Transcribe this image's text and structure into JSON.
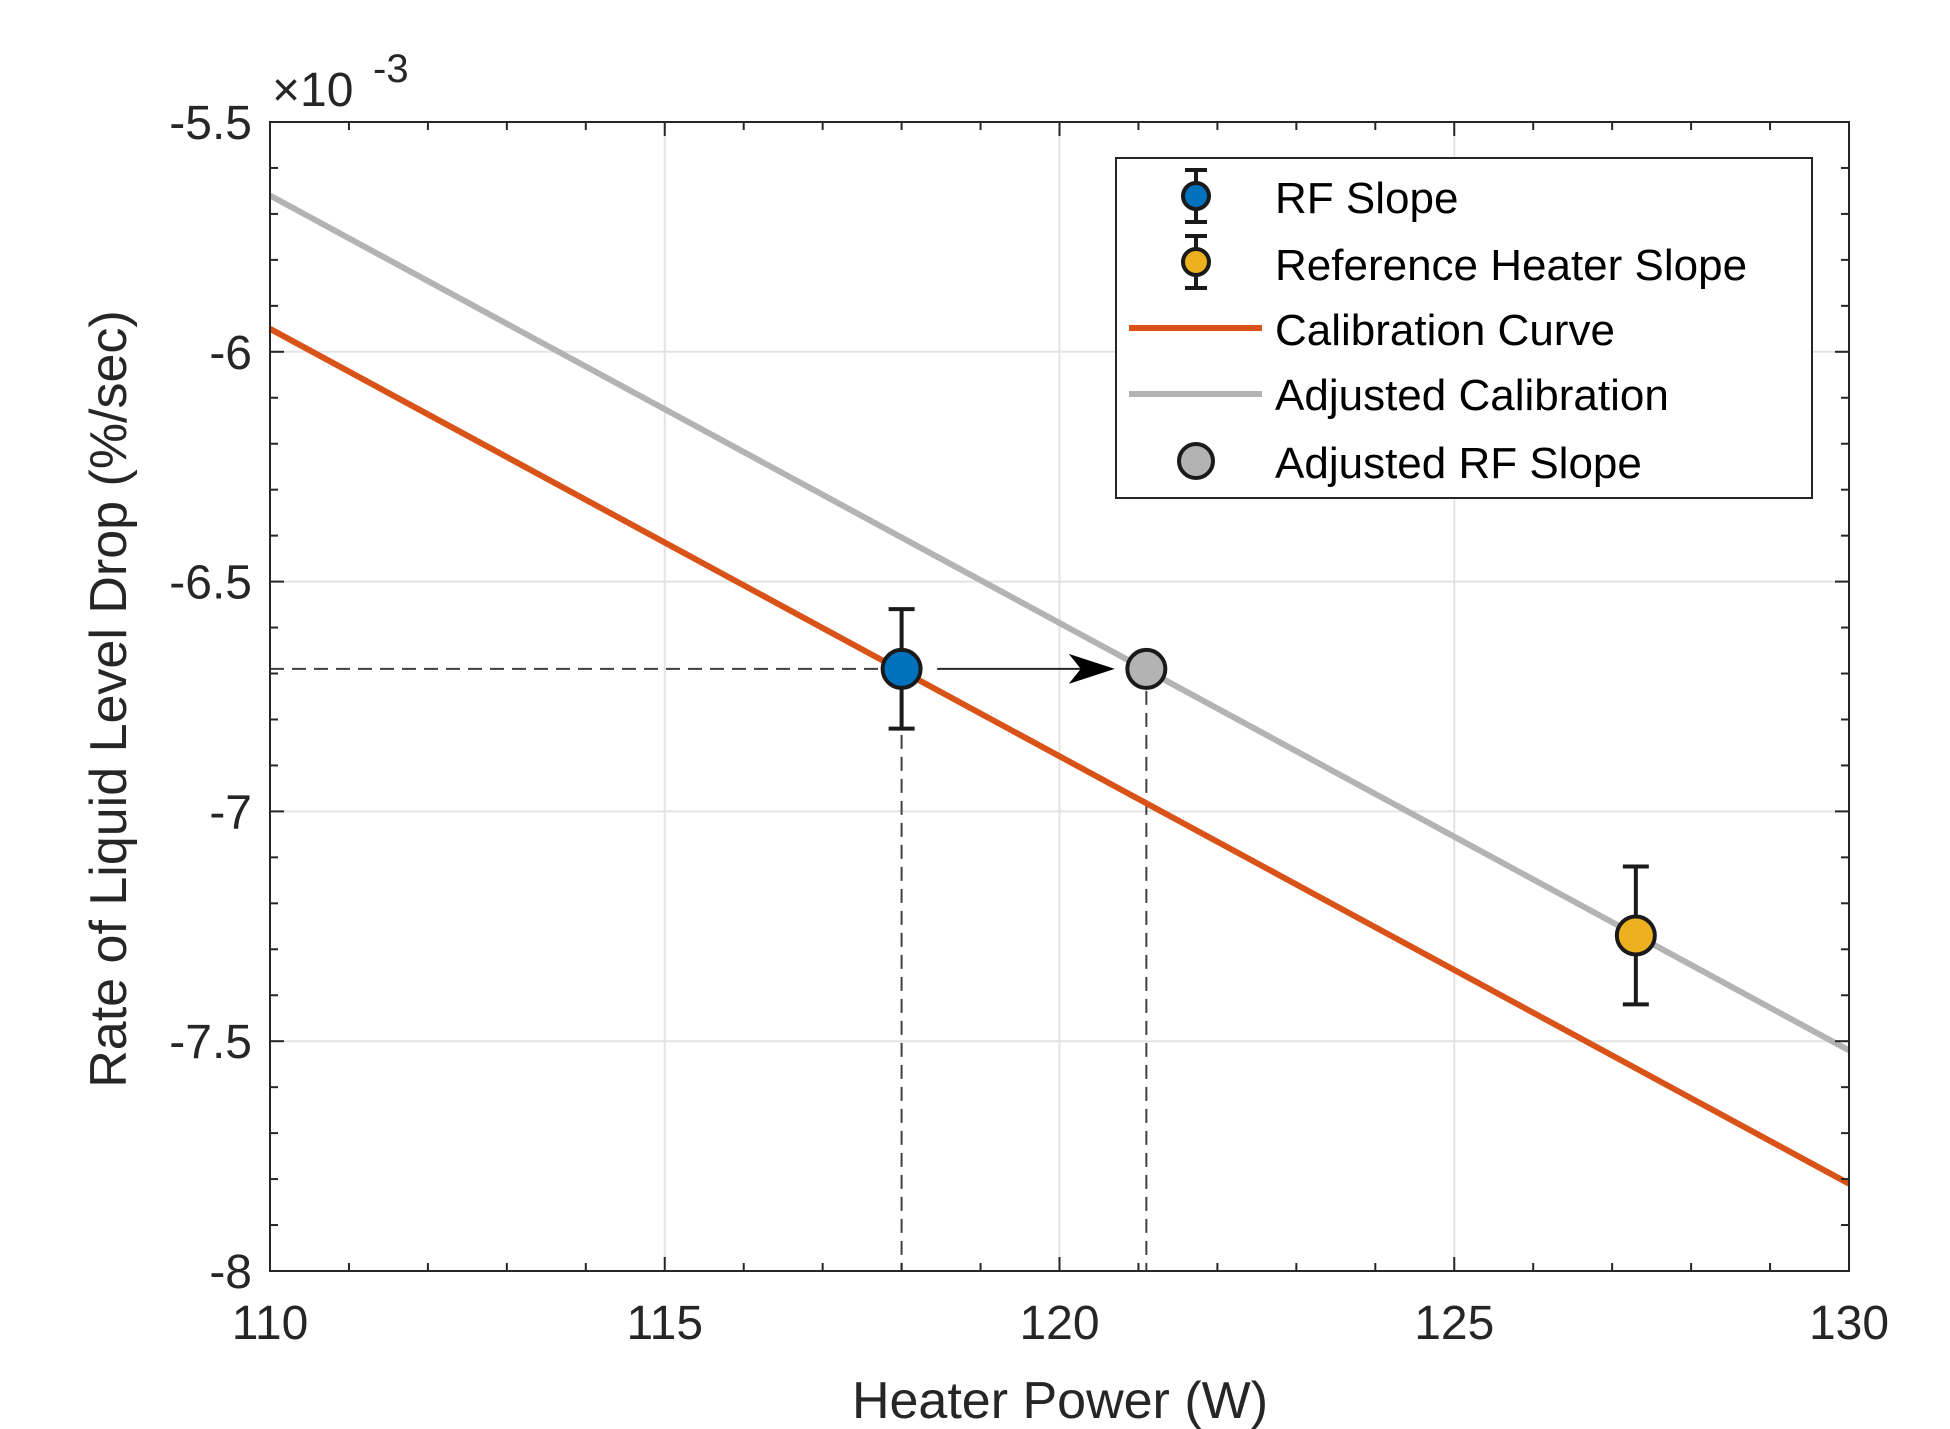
{
  "chart_data": {
    "type": "line",
    "xlabel": "Heater Power (W)",
    "ylabel": "Rate of Liquid Level Drop (%/sec)",
    "y_exponent_label": "×10",
    "y_exponent_power": "-3",
    "xlim": [
      110,
      130
    ],
    "ylim": [
      -8,
      -5.5
    ],
    "x_ticks": [
      110,
      115,
      120,
      125,
      130
    ],
    "x_tick_labels": [
      "110",
      "115",
      "120",
      "125",
      "130"
    ],
    "y_ticks": [
      -5.5,
      -6,
      -6.5,
      -7,
      -7.5,
      -8
    ],
    "y_tick_labels": [
      "-5.5",
      "-6",
      "-6.5",
      "-7",
      "-7.5",
      "-8"
    ],
    "grid": true,
    "legend_position": "top-right",
    "series": [
      {
        "name": "RF Slope",
        "kind": "errorbar-point",
        "color": "#0072BD",
        "x": 118.0,
        "y": -6.69,
        "yerr_low": -6.82,
        "yerr_high": -6.56
      },
      {
        "name": "Reference Heater Slope",
        "kind": "errorbar-point",
        "color": "#EDB120",
        "x": 127.3,
        "y": -7.27,
        "yerr_low": -7.42,
        "yerr_high": -7.12
      },
      {
        "name": "Calibration Curve",
        "kind": "line",
        "color": "#D95319",
        "x": [
          110,
          130
        ],
        "y": [
          -5.95,
          -7.81
        ]
      },
      {
        "name": "Adjusted Calibration",
        "kind": "line",
        "color": "#B3B3B3",
        "x": [
          110,
          130
        ],
        "y": [
          -5.66,
          -7.52
        ]
      },
      {
        "name": "Adjusted RF Slope",
        "kind": "point",
        "color": "#B3B3B3",
        "x": 121.1,
        "y": -6.69
      }
    ],
    "annotations": {
      "horizontal_dashed_y": -6.69,
      "vertical_dashed_x": [
        118.0,
        121.1
      ],
      "arrow": {
        "from_x": 118.45,
        "to_x": 120.7,
        "y": -6.69
      }
    }
  }
}
